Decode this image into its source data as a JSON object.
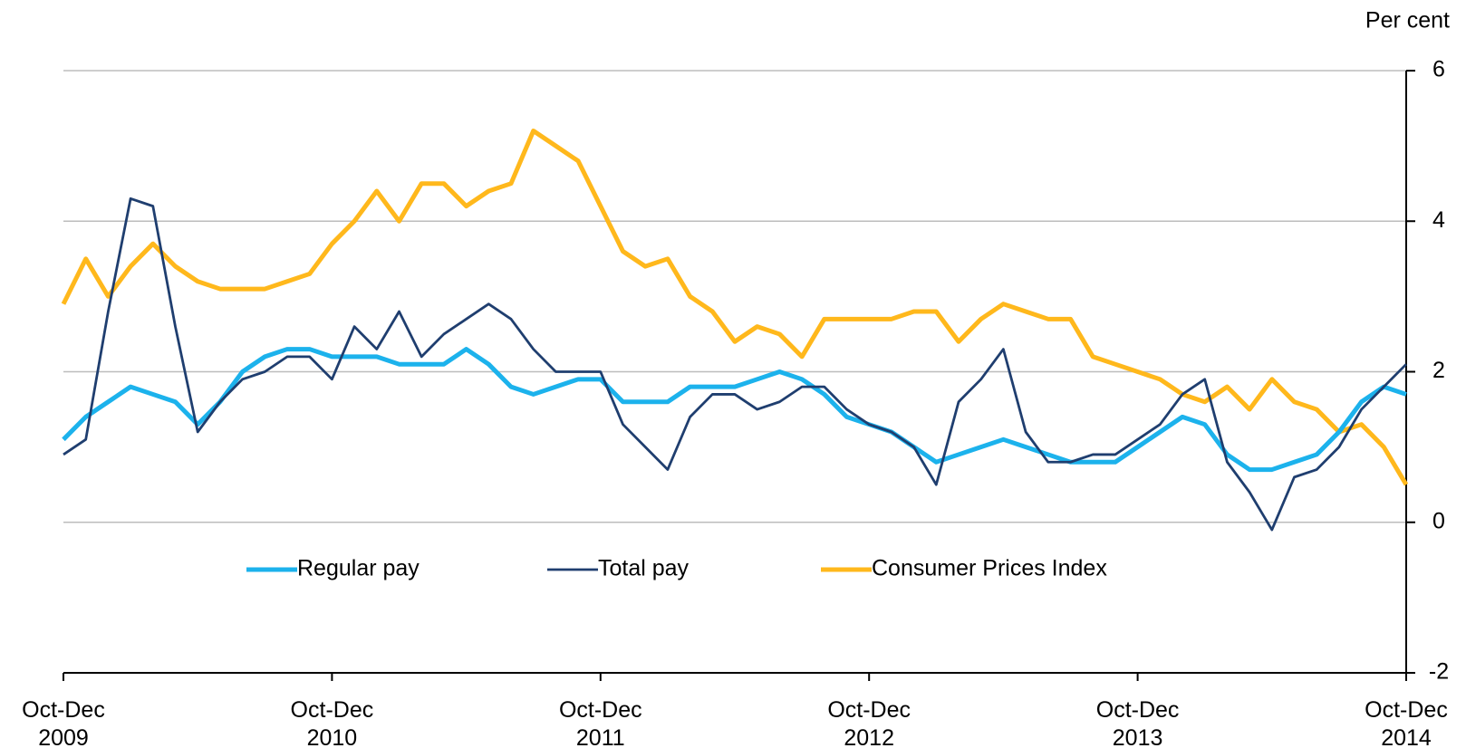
{
  "chart_data": {
    "type": "line",
    "y_axis_label": "Per cent",
    "categories": [
      "Oct-Dec\n2009",
      null,
      null,
      null,
      null,
      null,
      null,
      null,
      null,
      null,
      null,
      null,
      "Oct-Dec\n2010",
      null,
      null,
      null,
      null,
      null,
      null,
      null,
      null,
      null,
      null,
      null,
      "Oct-Dec\n2011",
      null,
      null,
      null,
      null,
      null,
      null,
      null,
      null,
      null,
      null,
      null,
      "Oct-Dec\n2012",
      null,
      null,
      null,
      null,
      null,
      null,
      null,
      null,
      null,
      null,
      null,
      "Oct-Dec\n2013",
      null,
      null,
      null,
      null,
      null,
      null,
      null,
      null,
      null,
      null,
      null,
      "Oct-Dec\n2014"
    ],
    "series": [
      {
        "name": "Regular pay",
        "color": "#1cb2ec",
        "values": [
          1.1,
          1.4,
          1.6,
          1.8,
          1.7,
          1.6,
          1.3,
          1.6,
          2.0,
          2.2,
          2.3,
          2.3,
          2.2,
          2.2,
          2.2,
          2.1,
          2.1,
          2.1,
          2.3,
          2.1,
          1.8,
          1.7,
          1.8,
          1.9,
          1.9,
          1.6,
          1.6,
          1.6,
          1.8,
          1.8,
          1.8,
          1.9,
          2.0,
          1.9,
          1.7,
          1.4,
          1.3,
          1.2,
          1.0,
          0.8,
          0.9,
          1.0,
          1.1,
          1.0,
          0.9,
          0.8,
          0.8,
          0.8,
          1.0,
          1.2,
          1.4,
          1.3,
          0.9,
          0.7,
          0.7,
          0.8,
          0.9,
          1.2,
          1.6,
          1.8,
          1.7
        ]
      },
      {
        "name": "Total pay",
        "color": "#1f3e6f",
        "values": [
          0.9,
          1.1,
          2.8,
          4.3,
          4.2,
          2.6,
          1.2,
          1.6,
          1.9,
          2.0,
          2.2,
          2.2,
          1.9,
          2.6,
          2.3,
          2.8,
          2.2,
          2.5,
          2.7,
          2.9,
          2.7,
          2.3,
          2.0,
          2.0,
          2.0,
          1.3,
          1.0,
          0.7,
          1.4,
          1.7,
          1.7,
          1.5,
          1.6,
          1.8,
          1.8,
          1.5,
          1.3,
          1.2,
          1.0,
          0.5,
          1.6,
          1.9,
          2.3,
          1.2,
          0.8,
          0.8,
          0.9,
          0.9,
          1.1,
          1.3,
          1.7,
          1.9,
          0.8,
          0.4,
          -0.1,
          0.6,
          0.7,
          1.0,
          1.5,
          1.8,
          2.1
        ]
      },
      {
        "name": "Consumer Prices Index",
        "color": "#ffb81c",
        "values": [
          2.9,
          3.5,
          3.0,
          3.4,
          3.7,
          3.4,
          3.2,
          3.1,
          3.1,
          3.1,
          3.2,
          3.3,
          3.7,
          4.0,
          4.4,
          4.0,
          4.5,
          4.5,
          4.2,
          4.4,
          4.5,
          5.2,
          5.0,
          4.8,
          4.2,
          3.6,
          3.4,
          3.5,
          3.0,
          2.8,
          2.4,
          2.6,
          2.5,
          2.2,
          2.7,
          2.7,
          2.7,
          2.7,
          2.8,
          2.8,
          2.4,
          2.7,
          2.9,
          2.8,
          2.7,
          2.7,
          2.2,
          2.1,
          2.0,
          1.9,
          1.7,
          1.6,
          1.8,
          1.5,
          1.9,
          1.6,
          1.5,
          1.2,
          1.3,
          1.0,
          0.5
        ]
      }
    ],
    "ylim": [
      -2,
      6
    ],
    "yticks": [
      -2,
      0,
      2,
      4,
      6
    ],
    "grid": true
  }
}
